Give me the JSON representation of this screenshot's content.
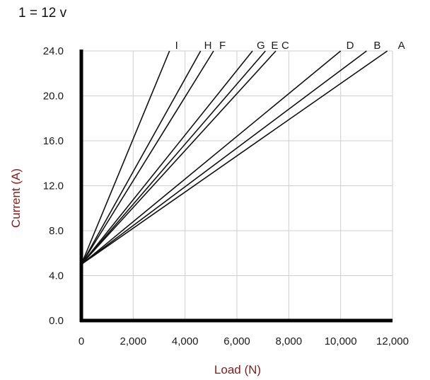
{
  "header": {
    "text": "1  = 12 v"
  },
  "colors": {
    "axis_title": "#8b1a1a",
    "grid": "#cfcfcf",
    "axis": "#000000",
    "series_line": "#111111"
  },
  "chart_data": {
    "type": "line",
    "title": "",
    "xlabel": "Load (N)",
    "ylabel": "Current (A)",
    "xlim": [
      0,
      12000
    ],
    "ylim": [
      0,
      24
    ],
    "grid": true,
    "legend": "none",
    "x_ticks": [
      0,
      2000,
      4000,
      6000,
      8000,
      10000,
      12000
    ],
    "x_tick_labels": [
      "0",
      "2,000",
      "4,000",
      "6,000",
      "8,000",
      "10,000",
      "12,000"
    ],
    "y_ticks": [
      0,
      4,
      8,
      12,
      16,
      20,
      24
    ],
    "y_tick_labels": [
      "0.0",
      "4.0",
      "8.0",
      "12.0",
      "16.0",
      "20.0",
      "24.0"
    ],
    "series": [
      {
        "name": "A",
        "x": [
          0,
          11800
        ],
        "y": [
          5,
          24
        ]
      },
      {
        "name": "B",
        "x": [
          0,
          11000
        ],
        "y": [
          5,
          24
        ]
      },
      {
        "name": "C",
        "x": [
          0,
          7500
        ],
        "y": [
          5,
          24
        ]
      },
      {
        "name": "D",
        "x": [
          0,
          10000
        ],
        "y": [
          5,
          24
        ]
      },
      {
        "name": "E",
        "x": [
          0,
          7100
        ],
        "y": [
          5,
          24
        ]
      },
      {
        "name": "F",
        "x": [
          0,
          5100
        ],
        "y": [
          5,
          24
        ]
      },
      {
        "name": "G",
        "x": [
          0,
          6600
        ],
        "y": [
          5,
          24
        ]
      },
      {
        "name": "H",
        "x": [
          0,
          4600
        ],
        "y": [
          5,
          24
        ]
      },
      {
        "name": "I",
        "x": [
          0,
          3400
        ],
        "y": [
          5,
          24
        ]
      }
    ]
  }
}
